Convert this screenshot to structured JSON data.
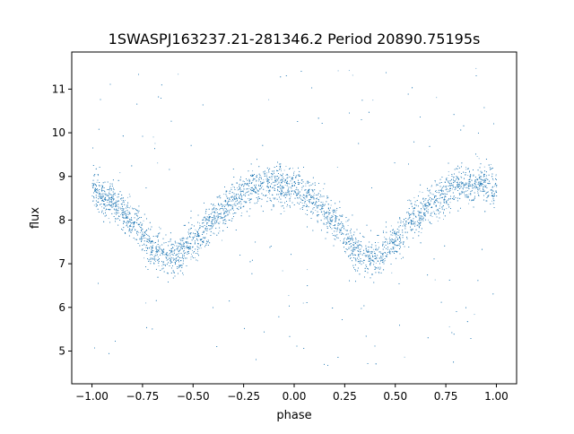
{
  "chart_data": {
    "type": "scatter",
    "title": "1SWASPJ163237.21-281346.2 Period 20890.75195s",
    "xlabel": "phase",
    "ylabel": "flux",
    "xlim": [
      -1.1,
      1.1
    ],
    "ylim": [
      4.25,
      11.85
    ],
    "x_ticks": [
      -1.0,
      -0.75,
      -0.5,
      -0.25,
      0.0,
      0.25,
      0.5,
      0.75,
      1.0
    ],
    "x_tick_labels": [
      "−1.00",
      "−0.75",
      "−0.50",
      "−0.25",
      "0.00",
      "0.25",
      "0.50",
      "0.75",
      "1.00"
    ],
    "y_ticks": [
      5,
      6,
      7,
      8,
      9,
      10,
      11
    ],
    "y_tick_labels": [
      "5",
      "6",
      "7",
      "8",
      "9",
      "10",
      "11"
    ],
    "grid": false,
    "legend": "none",
    "marker_color": "#1f77b4",
    "series": [
      {
        "phase_range": [
          -1.0,
          1.0
        ],
        "profile": {
          "x": [
            -1.0,
            -0.9,
            -0.8,
            -0.7,
            -0.6,
            -0.5,
            -0.4,
            -0.3,
            -0.2,
            -0.1,
            0.0,
            0.1,
            0.2,
            0.3,
            0.4,
            0.5,
            0.6,
            0.7,
            0.8,
            0.9,
            1.0
          ],
          "y": [
            8.65,
            8.45,
            8.0,
            7.35,
            7.15,
            7.5,
            8.05,
            8.45,
            8.8,
            8.85,
            8.75,
            8.45,
            8.0,
            7.35,
            7.15,
            7.5,
            8.05,
            8.45,
            8.8,
            8.85,
            8.75
          ]
        },
        "scatter_sigma": 0.22,
        "n_points": 9000,
        "outlier_range": [
          4.6,
          11.5
        ]
      }
    ]
  }
}
